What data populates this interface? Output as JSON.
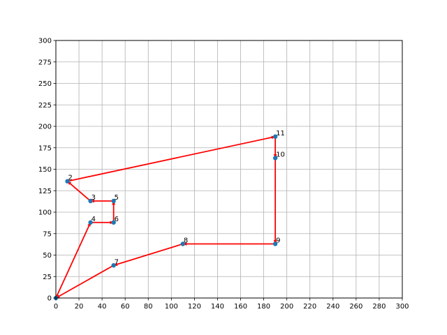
{
  "chart_data": {
    "type": "scatter",
    "title": "",
    "xlabel": "",
    "ylabel": "",
    "xlim": [
      0,
      300
    ],
    "ylim": [
      0,
      300
    ],
    "xticks": [
      0,
      20,
      40,
      60,
      80,
      100,
      120,
      140,
      160,
      180,
      200,
      220,
      240,
      260,
      280,
      300
    ],
    "yticks": [
      0,
      25,
      50,
      75,
      100,
      125,
      150,
      175,
      200,
      225,
      250,
      275,
      300
    ],
    "grid": true,
    "point_color": "#1f77b4",
    "arrow_color": "#ff0000",
    "points": [
      {
        "label": "",
        "x": 0,
        "y": 0
      },
      {
        "label": "2",
        "x": 10,
        "y": 136
      },
      {
        "label": "3",
        "x": 30,
        "y": 113
      },
      {
        "label": "4",
        "x": 30,
        "y": 88
      },
      {
        "label": "5",
        "x": 50,
        "y": 113
      },
      {
        "label": "6",
        "x": 50,
        "y": 88
      },
      {
        "label": "7",
        "x": 50,
        "y": 38
      },
      {
        "label": "8",
        "x": 110,
        "y": 63
      },
      {
        "label": "9",
        "x": 190,
        "y": 63
      },
      {
        "label": "10",
        "x": 190,
        "y": 163
      },
      {
        "label": "11",
        "x": 190,
        "y": 188
      }
    ],
    "path": [
      [
        0,
        0
      ],
      [
        30,
        88
      ],
      [
        50,
        88
      ],
      [
        50,
        113
      ],
      [
        30,
        113
      ],
      [
        10,
        136
      ],
      [
        190,
        188
      ],
      [
        190,
        163
      ],
      [
        190,
        63
      ],
      [
        110,
        63
      ],
      [
        50,
        38
      ],
      [
        0,
        0
      ]
    ]
  }
}
